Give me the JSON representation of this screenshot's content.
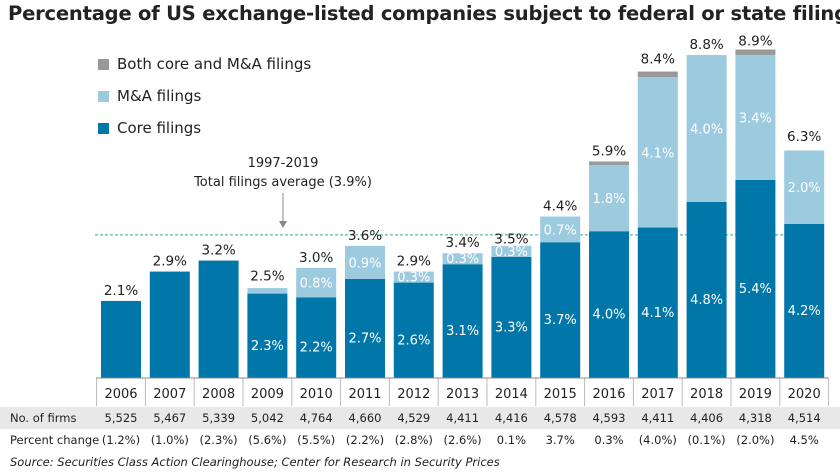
{
  "title": "Percentage of US exchange-listed companies subject to federal or state filings",
  "legend": [
    {
      "label": "Both core and M&A filings",
      "color": "#999999"
    },
    {
      "label": "M&A filings",
      "color": "#9ccbe0"
    },
    {
      "label": "Core filings",
      "color": "#0077a8"
    }
  ],
  "annotation": {
    "line1": "1997-2019",
    "line2": "Total filings average (3.9%)",
    "value": 3.9
  },
  "table": {
    "firms_label": "No. of firms",
    "firms": [
      "5,525",
      "5,467",
      "5,339",
      "5,042",
      "4,764",
      "4,660",
      "4,529",
      "4,411",
      "4,416",
      "4,578",
      "4,593",
      "4,411",
      "4,406",
      "4,318",
      "4,514"
    ],
    "change_label": "Percent change",
    "change": [
      "(1.2%)",
      "(1.0%)",
      "(2.3%)",
      "(5.6%)",
      "(5.5%)",
      "(2.2%)",
      "(2.8%)",
      "(2.6%)",
      "0.1%",
      "3.7%",
      "0.3%",
      "(4.0%)",
      "(0.1%)",
      "(2.0%)",
      "4.5%"
    ]
  },
  "source": "Source: Securities Class Action Clearinghouse; Center for Research in Security Prices",
  "chart_data": {
    "type": "bar",
    "stacked": true,
    "title": "Percentage of US exchange-listed companies subject to federal or state filings",
    "xlabel": "",
    "ylabel": "",
    "ylim": [
      0,
      9.5
    ],
    "categories": [
      "2006",
      "2007",
      "2008",
      "2009",
      "2010",
      "2011",
      "2012",
      "2013",
      "2014",
      "2015",
      "2016",
      "2017",
      "2018",
      "2019",
      "2020"
    ],
    "series": [
      {
        "name": "Core filings",
        "color": "#0077a8",
        "values": [
          2.1,
          2.9,
          3.2,
          2.3,
          2.2,
          2.7,
          2.6,
          3.1,
          3.3,
          3.7,
          4.0,
          4.1,
          4.8,
          5.4,
          4.2
        ],
        "labels": [
          "",
          "",
          "",
          "2.3%",
          "2.2%",
          "2.7%",
          "2.6%",
          "3.1%",
          "3.3%",
          "3.7%",
          "4.0%",
          "4.1%",
          "4.8%",
          "5.4%",
          "4.2%"
        ]
      },
      {
        "name": "M&A filings",
        "color": "#9ccbe0",
        "values": [
          0,
          0,
          0,
          0.15,
          0.8,
          0.9,
          0.3,
          0.3,
          0.3,
          0.7,
          1.8,
          4.1,
          4.0,
          3.4,
          2.0
        ],
        "labels": [
          "",
          "",
          "",
          "",
          "0.8%",
          "0.9%",
          "0.3%",
          "0.3%",
          "0.3%",
          "0.7%",
          "1.8%",
          "4.1%",
          "4.0%",
          "3.4%",
          "2.0%"
        ]
      },
      {
        "name": "Both core and M&A filings",
        "color": "#999999",
        "values": [
          0,
          0,
          0,
          0,
          0,
          0,
          0,
          0,
          0,
          0,
          0.1,
          0.15,
          0,
          0.15,
          0
        ],
        "labels": [
          "",
          "",
          "",
          "",
          "",
          "",
          "",
          "",
          "",
          "",
          "",
          "",
          "",
          "",
          ""
        ]
      }
    ],
    "totals": [
      "2.1%",
      "2.9%",
      "3.2%",
      "2.5%",
      "3.0%",
      "3.6%",
      "2.9%",
      "3.4%",
      "3.5%",
      "4.4%",
      "5.9%",
      "8.4%",
      "8.8%",
      "8.9%",
      "6.3%"
    ],
    "total_values": [
      2.1,
      2.9,
      3.2,
      2.5,
      3.0,
      3.6,
      2.9,
      3.4,
      3.5,
      4.4,
      5.9,
      8.4,
      8.8,
      8.9,
      6.3
    ],
    "reference_line": {
      "value": 3.9,
      "label": "1997-2019 Total filings average (3.9%)",
      "style": "dashed",
      "color": "#3aa89a"
    },
    "legend_position": "top-left",
    "grid": false
  }
}
